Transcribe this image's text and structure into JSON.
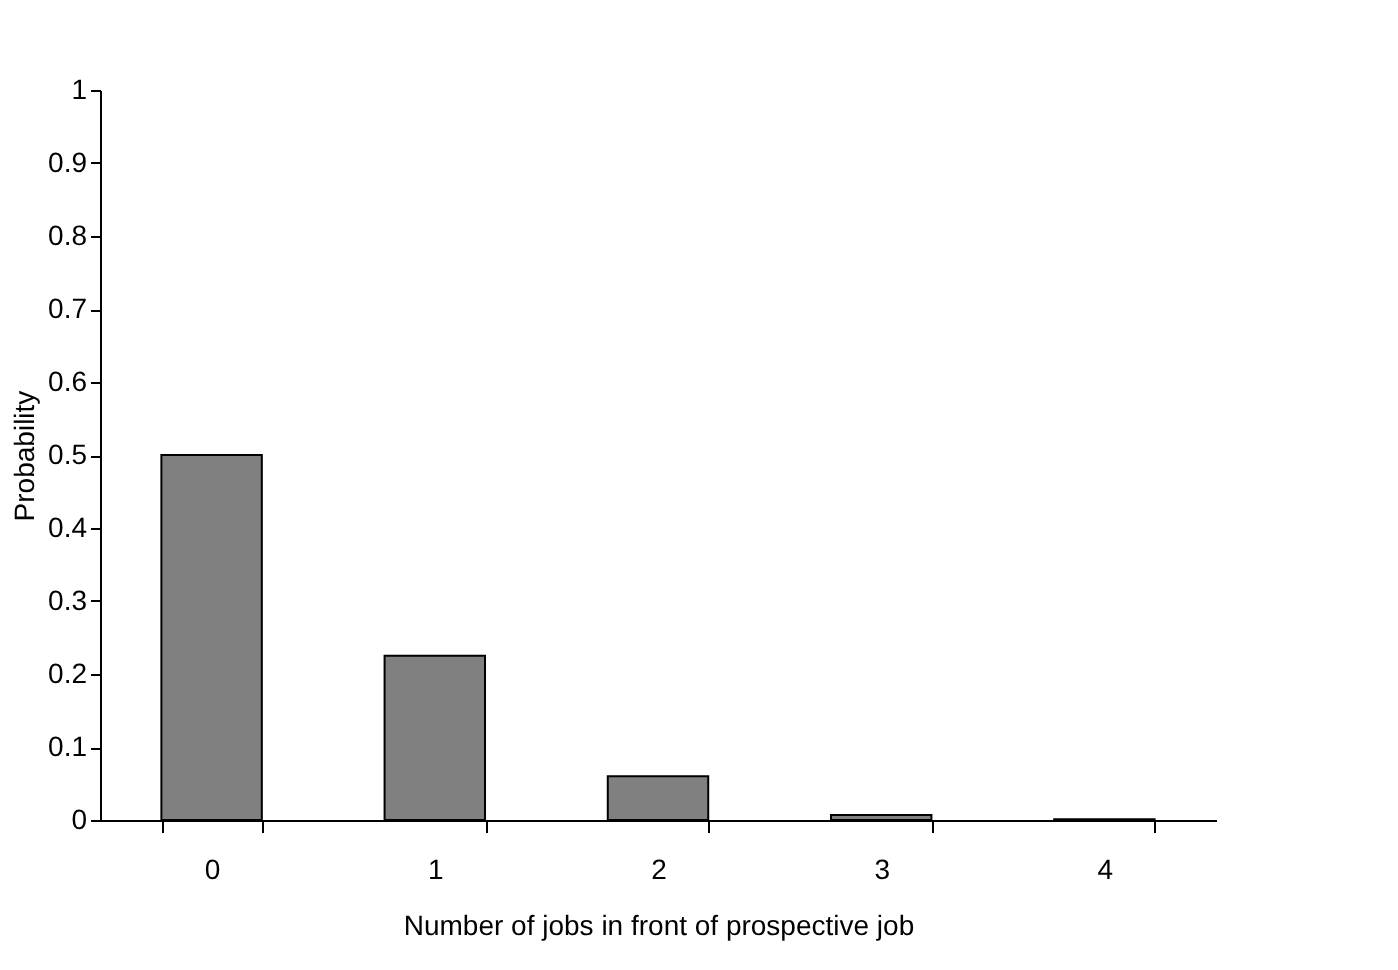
{
  "chart_data": {
    "type": "bar",
    "xlabel": "Number of jobs in front of prospective job",
    "ylabel": "Probability",
    "categories": [
      "0",
      "1",
      "2",
      "3",
      "4"
    ],
    "values": [
      0.5,
      0.225,
      0.06,
      0.007,
      0.001
    ],
    "color": "#808080",
    "ylim": [
      0,
      1
    ],
    "yticks": [
      0,
      0.1,
      0.2,
      0.3,
      0.4,
      0.5,
      0.6,
      0.7,
      0.8,
      0.9,
      1
    ],
    "grid": false
  }
}
